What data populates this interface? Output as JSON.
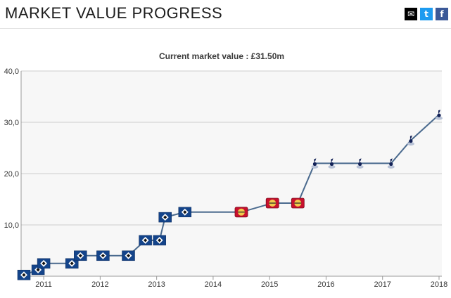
{
  "header": {
    "title": "MARKET VALUE PROGRESS",
    "share_icons": [
      "mail-icon",
      "twitter-icon",
      "facebook-icon"
    ]
  },
  "colors": {
    "line": "#4a6a8e",
    "plot_bg": "#f7f7f7",
    "grid": "#cccccc",
    "hsv_blue": "#14448a",
    "leverkusen_red": "#c8102e",
    "leverkusen_yellow": "#f2c94c",
    "tottenham_navy": "#132257"
  },
  "chart_data": {
    "type": "line",
    "subtitle": "Current market value : £31.50m",
    "x_ticks": [
      "2011",
      "2012",
      "2013",
      "2014",
      "2015",
      "2016",
      "2017",
      "2018"
    ],
    "y_ticks": [
      "10,0",
      "20,0",
      "30,0",
      "40,0"
    ],
    "ylim": [
      0,
      40
    ],
    "xlim": [
      2010.6,
      2018.05
    ],
    "grid": true,
    "series": [
      {
        "points": [
          {
            "x": 2010.65,
            "y": 0.25,
            "club": "hsv"
          },
          {
            "x": 2010.9,
            "y": 1.25,
            "club": "hsv"
          },
          {
            "x": 2011.0,
            "y": 2.5,
            "club": "hsv"
          },
          {
            "x": 2011.5,
            "y": 2.5,
            "club": "hsv"
          },
          {
            "x": 2011.65,
            "y": 4.0,
            "club": "hsv"
          },
          {
            "x": 2012.05,
            "y": 4.0,
            "club": "hsv"
          },
          {
            "x": 2012.5,
            "y": 4.0,
            "club": "hsv"
          },
          {
            "x": 2012.8,
            "y": 7.0,
            "club": "hsv"
          },
          {
            "x": 2013.05,
            "y": 7.0,
            "club": "hsv"
          },
          {
            "x": 2013.15,
            "y": 11.5,
            "club": "hsv"
          },
          {
            "x": 2013.5,
            "y": 12.5,
            "club": "hsv"
          },
          {
            "x": 2014.5,
            "y": 12.5,
            "club": "leverkusen"
          },
          {
            "x": 2015.05,
            "y": 14.25,
            "club": "leverkusen"
          },
          {
            "x": 2015.5,
            "y": 14.25,
            "club": "leverkusen"
          },
          {
            "x": 2015.8,
            "y": 22.0,
            "club": "tottenham"
          },
          {
            "x": 2016.1,
            "y": 22.0,
            "club": "tottenham"
          },
          {
            "x": 2016.6,
            "y": 22.0,
            "club": "tottenham"
          },
          {
            "x": 2017.15,
            "y": 22.0,
            "club": "tottenham"
          },
          {
            "x": 2017.5,
            "y": 26.5,
            "club": "tottenham"
          },
          {
            "x": 2018.0,
            "y": 31.5,
            "club": "tottenham"
          }
        ]
      }
    ]
  }
}
